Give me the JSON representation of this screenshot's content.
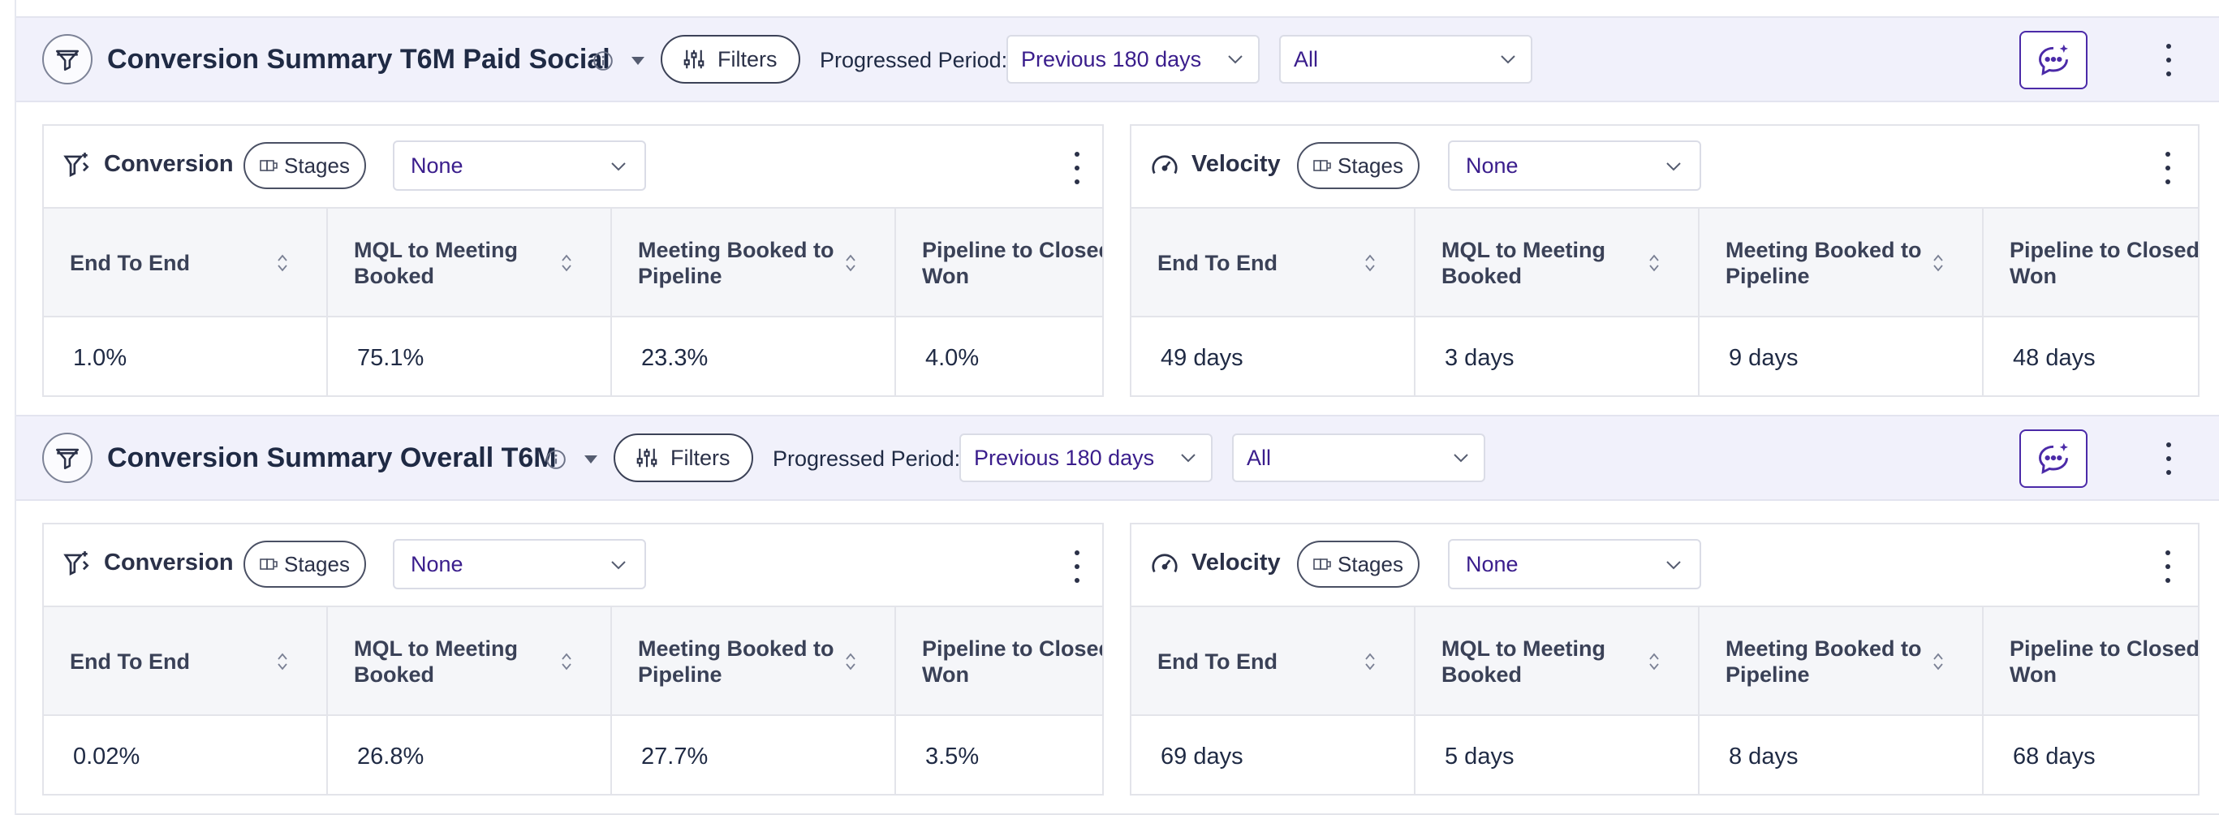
{
  "sections": [
    {
      "title": "Conversion Summary T6M Paid Social",
      "filters_label": "Filters",
      "progressed_period_label": "Progressed Period:",
      "period_value": "Previous 180 days",
      "scope_value": "All",
      "conversion": {
        "title": "Conversion",
        "stages_label": "Stages",
        "select_value": "None",
        "columns": [
          "End To End",
          "MQL to Meeting Booked",
          "Meeting Booked to Pipeline",
          "Pipeline to Closed Won"
        ],
        "values": [
          "1.0%",
          "75.1%",
          "23.3%",
          "4.0%"
        ]
      },
      "velocity": {
        "title": "Velocity",
        "stages_label": "Stages",
        "select_value": "None",
        "columns": [
          "End To End",
          "MQL to Meeting Booked",
          "Meeting Booked to Pipeline",
          "Pipeline to Closed Won"
        ],
        "values": [
          "49 days",
          "3 days",
          "9 days",
          "48 days"
        ]
      }
    },
    {
      "title": "Conversion Summary Overall T6M",
      "filters_label": "Filters",
      "progressed_period_label": "Progressed Period:",
      "period_value": "Previous 180 days",
      "scope_value": "All",
      "conversion": {
        "title": "Conversion",
        "stages_label": "Stages",
        "select_value": "None",
        "columns": [
          "End To End",
          "MQL to Meeting Booked",
          "Meeting Booked to Pipeline",
          "Pipeline to Closed Won"
        ],
        "values": [
          "0.02%",
          "26.8%",
          "27.7%",
          "3.5%"
        ]
      },
      "velocity": {
        "title": "Velocity",
        "stages_label": "Stages",
        "select_value": "None",
        "columns": [
          "End To End",
          "MQL to Meeting Booked",
          "Meeting Booked to Pipeline",
          "Pipeline to Closed Won"
        ],
        "values": [
          "69 days",
          "5 days",
          "8 days",
          "68 days"
        ]
      }
    }
  ],
  "icons": {
    "section": "funnel-icon",
    "info": "info-icon",
    "caret": "caret-down-icon",
    "filters": "sliders-icon",
    "chat": "ai-chat-icon",
    "more": "kebab-menu-icon",
    "conversion": "conversion-funnel-icon",
    "velocity": "speedometer-icon",
    "stages": "stages-icon",
    "sort": "sort-icon"
  },
  "colors": {
    "accent": "#4b2aa8",
    "header_bg": "#f1f1fb",
    "select_text": "#3a1d8c"
  }
}
